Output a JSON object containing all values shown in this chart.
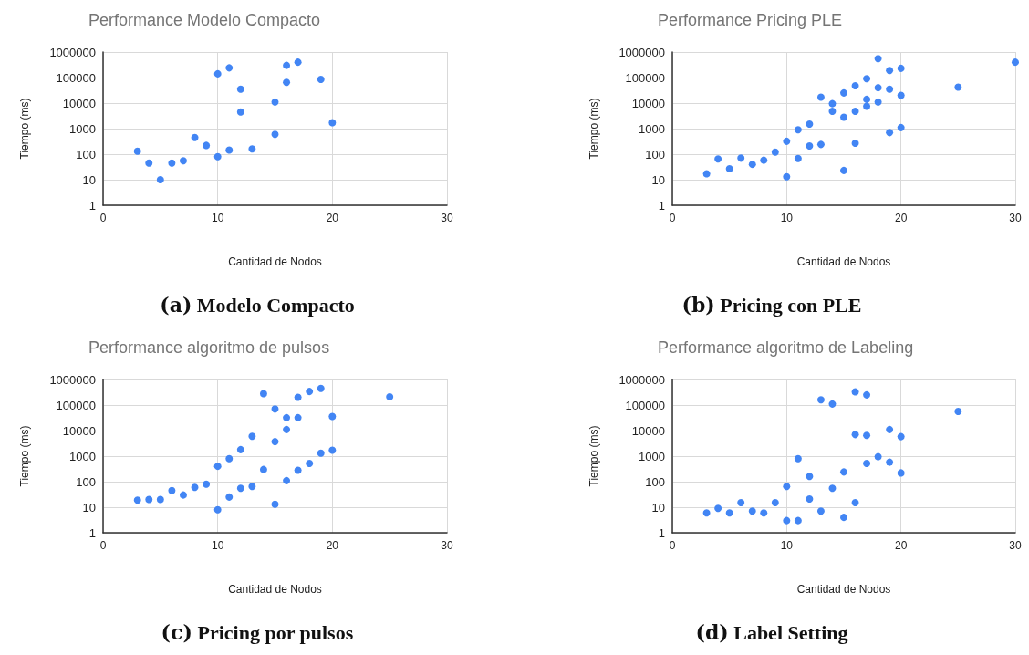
{
  "chart_data": [
    {
      "type": "scatter",
      "title": "Performance Modelo Compacto",
      "xlabel": "Cantidad de Nodos",
      "ylabel": "Tiempo (ms)",
      "annotations": [
        "(a) Modelo Compacto"
      ],
      "log": "y",
      "grid": true,
      "marker": "circle",
      "color": "#4285f4",
      "xlim": [
        0,
        30
      ],
      "xticks": [
        0,
        10,
        20,
        30
      ],
      "ylim": [
        1,
        1000000
      ],
      "yticks": [
        1,
        10,
        100,
        1000,
        10000,
        100000,
        1000000
      ],
      "x": [
        3,
        4,
        5,
        6,
        7,
        8,
        9,
        10,
        10,
        11,
        11,
        12,
        12,
        13,
        15,
        15,
        16,
        16,
        17,
        19,
        20
      ],
      "values": [
        130,
        45,
        10,
        45,
        55,
        450,
        220,
        80,
        140000,
        240000,
        145,
        35000,
        4500,
        160,
        11000,
        600,
        300000,
        65000,
        400000,
        85000,
        1700
      ]
    },
    {
      "type": "scatter",
      "title": "Performance Pricing PLE",
      "xlabel": "Cantidad de Nodos",
      "ylabel": "Tiempo (ms)",
      "annotations": [
        "(b) Pricing con PLE"
      ],
      "log": "y",
      "grid": true,
      "marker": "circle",
      "color": "#4285f4",
      "xlim": [
        0,
        30
      ],
      "xticks": [
        0,
        10,
        20,
        30
      ],
      "ylim": [
        1,
        1000000
      ],
      "yticks": [
        1,
        10,
        100,
        1000,
        10000,
        100000,
        1000000
      ],
      "x": [
        3,
        4,
        5,
        6,
        7,
        8,
        9,
        10,
        10,
        11,
        11,
        12,
        12,
        13,
        13,
        14,
        14,
        15,
        15,
        15,
        16,
        16,
        16,
        17,
        17,
        17,
        18,
        18,
        18,
        19,
        19,
        19,
        20,
        20,
        20,
        25,
        30
      ],
      "values": [
        17,
        65,
        27,
        70,
        40,
        58,
        120,
        320,
        13,
        900,
        68,
        1500,
        210,
        17000,
        240,
        9500,
        4800,
        25000,
        2800,
        23,
        48000,
        4800,
        270,
        90000,
        14000,
        7500,
        550000,
        40000,
        11000,
        190000,
        35000,
        700,
        230000,
        20000,
        1100,
        42000,
        400000
      ]
    },
    {
      "type": "scatter",
      "title": "Performance algoritmo de pulsos",
      "xlabel": "Cantidad de Nodos",
      "ylabel": "Tiempo (ms)",
      "annotations": [
        "(c) Pricing por pulsos"
      ],
      "log": "y",
      "grid": true,
      "marker": "circle",
      "color": "#4285f4",
      "xlim": [
        0,
        30
      ],
      "xticks": [
        0,
        10,
        20,
        30
      ],
      "ylim": [
        1,
        1000000
      ],
      "yticks": [
        1,
        10,
        100,
        1000,
        10000,
        100000,
        1000000
      ],
      "x": [
        3,
        4,
        5,
        6,
        7,
        8,
        9,
        10,
        10,
        11,
        11,
        12,
        12,
        13,
        13,
        14,
        14,
        15,
        15,
        15,
        16,
        16,
        16,
        17,
        17,
        17,
        18,
        18,
        19,
        19,
        20,
        20,
        25
      ],
      "values": [
        19,
        20,
        20,
        45,
        30,
        60,
        80,
        400,
        8,
        800,
        25,
        1800,
        55,
        6000,
        65,
        280000,
        300,
        70000,
        3700,
        13,
        32000,
        11000,
        110,
        200000,
        32000,
        280,
        340000,
        520,
        450000,
        1300,
        36000,
        1700,
        210000
      ]
    },
    {
      "type": "scatter",
      "title": "Performance algoritmo de Labeling",
      "xlabel": "Cantidad de Nodos",
      "ylabel": "Tiempo (ms)",
      "annotations": [
        "(d) Label Setting"
      ],
      "log": "y",
      "grid": true,
      "marker": "circle",
      "color": "#4285f4",
      "xlim": [
        0,
        30
      ],
      "xticks": [
        0,
        10,
        20,
        30
      ],
      "ylim": [
        1,
        1000000
      ],
      "yticks": [
        1,
        10,
        100,
        1000,
        10000,
        100000,
        1000000
      ],
      "x": [
        3,
        4,
        5,
        6,
        7,
        8,
        9,
        10,
        10,
        11,
        11,
        12,
        12,
        13,
        13,
        14,
        14,
        15,
        15,
        16,
        16,
        16,
        17,
        17,
        17,
        18,
        19,
        19,
        20,
        20,
        25
      ],
      "values": [
        6,
        9,
        6,
        15,
        7,
        6,
        15,
        65,
        3,
        800,
        3,
        160,
        21,
        160000,
        7,
        110000,
        55,
        240,
        4,
        330000,
        7000,
        15,
        250000,
        6500,
        520,
        950,
        11000,
        580,
        5800,
        220,
        56000
      ]
    }
  ]
}
